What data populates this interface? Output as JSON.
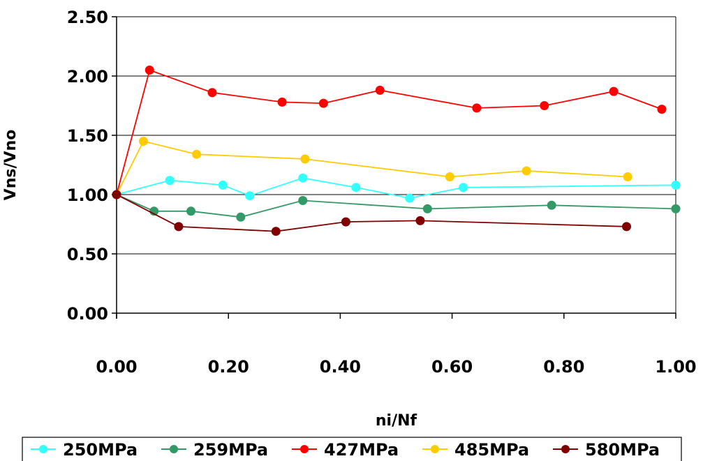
{
  "chart_data": {
    "type": "line",
    "title": "",
    "xlabel": "ni/Nf",
    "ylabel": "Vns/Vno",
    "xlim": [
      0,
      1
    ],
    "ylim": [
      0,
      2.5
    ],
    "x_ticks": [
      "0.00",
      "0.20",
      "0.40",
      "0.60",
      "0.80",
      "1.00"
    ],
    "y_ticks": [
      "0.00",
      "0.50",
      "1.00",
      "1.50",
      "2.00",
      "2.50"
    ],
    "grid": "horizontal",
    "legend_position": "bottom",
    "series": [
      {
        "name": "250MPa",
        "color": "#33ffff",
        "points": [
          [
            0,
            1.0
          ],
          [
            0.095,
            1.12
          ],
          [
            0.19,
            1.08
          ],
          [
            0.238,
            0.99
          ],
          [
            0.333,
            1.14
          ],
          [
            0.428,
            1.06
          ],
          [
            0.524,
            0.97
          ],
          [
            0.62,
            1.06
          ],
          [
            1.0,
            1.08
          ]
        ]
      },
      {
        "name": "259MPa",
        "color": "#339966",
        "points": [
          [
            0,
            1.0
          ],
          [
            0.067,
            0.86
          ],
          [
            0.133,
            0.86
          ],
          [
            0.222,
            0.81
          ],
          [
            0.333,
            0.95
          ],
          [
            0.556,
            0.88
          ],
          [
            0.778,
            0.91
          ],
          [
            1.0,
            0.88
          ]
        ]
      },
      {
        "name": "427MPa",
        "color": "#ff0000",
        "points": [
          [
            0,
            1.0
          ],
          [
            0.059,
            2.05
          ],
          [
            0.171,
            1.86
          ],
          [
            0.296,
            1.78
          ],
          [
            0.37,
            1.77
          ],
          [
            0.471,
            1.88
          ],
          [
            0.644,
            1.73
          ],
          [
            0.765,
            1.75
          ],
          [
            0.889,
            1.87
          ],
          [
            0.975,
            1.72
          ]
        ]
      },
      {
        "name": "485MPa",
        "color": "#ffcc00",
        "points": [
          [
            0,
            1.0
          ],
          [
            0.048,
            1.45
          ],
          [
            0.143,
            1.34
          ],
          [
            0.337,
            1.3
          ],
          [
            0.596,
            1.15
          ],
          [
            0.733,
            1.2
          ],
          [
            0.914,
            1.15
          ]
        ]
      },
      {
        "name": "580MPa",
        "color": "#800000",
        "points": [
          [
            0,
            1.0
          ],
          [
            0.111,
            0.73
          ],
          [
            0.285,
            0.69
          ],
          [
            0.41,
            0.77
          ],
          [
            0.543,
            0.78
          ],
          [
            0.912,
            0.73
          ]
        ]
      }
    ]
  }
}
